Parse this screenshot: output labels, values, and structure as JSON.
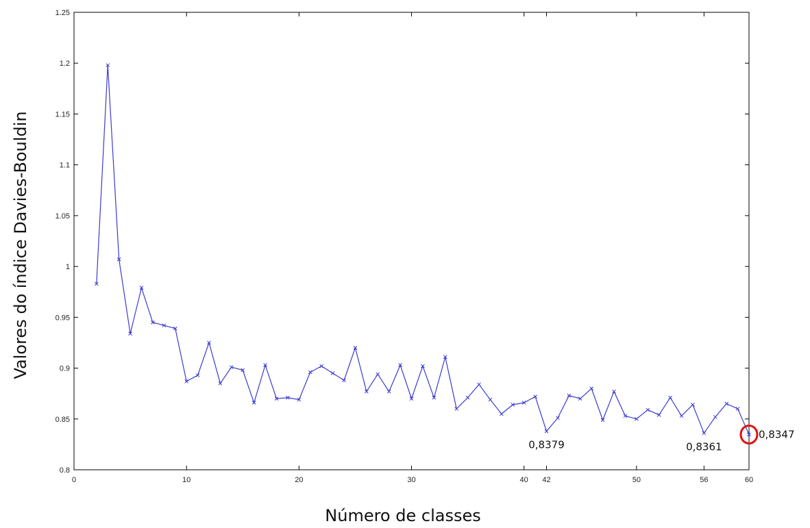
{
  "chart_data": {
    "type": "line",
    "xlabel": "Número de classes",
    "ylabel": "Valores do índice Davies-Bouldin",
    "xlim": [
      0,
      60
    ],
    "ylim": [
      0.8,
      1.25
    ],
    "xticks": [
      "0",
      "10",
      "20",
      "30",
      "40",
      "42",
      "50",
      "56",
      "60"
    ],
    "xtick_values": [
      0,
      10,
      20,
      30,
      40,
      42,
      50,
      56,
      60
    ],
    "yticks": [
      "0.8",
      "0.85",
      "0.9",
      "0.95",
      "1",
      "1.05",
      "1.1",
      "1.15",
      "1.2",
      "1.25"
    ],
    "ytick_values": [
      0.8,
      0.85,
      0.9,
      0.95,
      1.0,
      1.05,
      1.1,
      1.15,
      1.2,
      1.25
    ],
    "grid": false,
    "series": [
      {
        "color": "#3a3ad0",
        "marker": "x",
        "x": [
          2,
          3,
          4,
          5,
          6,
          7,
          8,
          9,
          10,
          11,
          12,
          13,
          14,
          15,
          16,
          17,
          18,
          19,
          20,
          21,
          22,
          23,
          24,
          25,
          26,
          27,
          28,
          29,
          30,
          31,
          32,
          33,
          34,
          35,
          36,
          37,
          38,
          39,
          40,
          41,
          42,
          43,
          44,
          45,
          46,
          47,
          48,
          49,
          50,
          51,
          52,
          53,
          54,
          55,
          56,
          57,
          58,
          59,
          60
        ],
        "values": [
          0.983,
          1.198,
          1.007,
          0.934,
          0.979,
          0.945,
          0.942,
          0.939,
          0.887,
          0.893,
          0.925,
          0.885,
          0.901,
          0.898,
          0.866,
          0.903,
          0.87,
          0.871,
          0.869,
          0.896,
          0.902,
          0.895,
          0.888,
          0.92,
          0.877,
          0.894,
          0.877,
          0.903,
          0.87,
          0.902,
          0.871,
          0.911,
          0.86,
          0.871,
          0.884,
          0.869,
          0.855,
          0.864,
          0.866,
          0.872,
          0.8379,
          0.851,
          0.873,
          0.87,
          0.88,
          0.849,
          0.877,
          0.853,
          0.85,
          0.859,
          0.854,
          0.871,
          0.853,
          0.864,
          0.8361,
          0.852,
          0.865,
          0.86,
          0.8347
        ]
      }
    ],
    "annotations": [
      {
        "text": "0,8379",
        "x": 42,
        "y": 0.8379
      },
      {
        "text": "0,8361",
        "x": 56,
        "y": 0.8361
      },
      {
        "text": "0,8347",
        "x": 60,
        "y": 0.8347
      }
    ],
    "highlight": {
      "x": 60,
      "y": 0.8347,
      "color": "#e01010"
    }
  }
}
